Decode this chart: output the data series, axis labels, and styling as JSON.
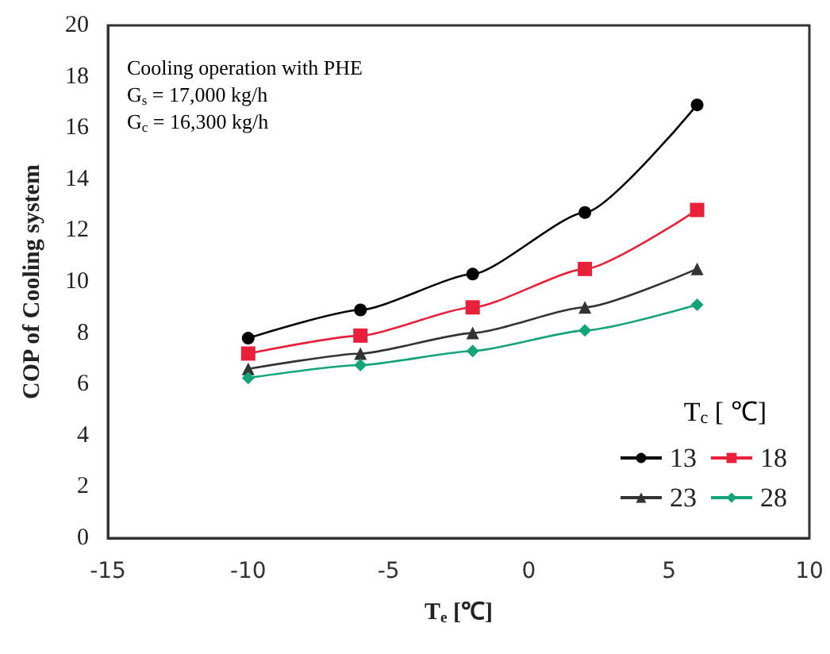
{
  "chart_data": {
    "type": "line",
    "xlabel": "T$_{e}$ [℃]",
    "ylabel": "COP of Cooling system",
    "legend_title": "T$_{c}$ [ ℃]",
    "annotations": [
      "Cooling operation with PHE",
      "G$_{s}$ = 17,000 kg/h",
      "G$_{c}$ = 16,300 kg/h"
    ],
    "x": [
      -10,
      -6,
      -2,
      2,
      6
    ],
    "series": [
      {
        "name": "13",
        "color": "#000000",
        "marker": "circle",
        "values": [
          7.8,
          8.9,
          10.3,
          12.7,
          16.9
        ]
      },
      {
        "name": "18",
        "color": "#e8203a",
        "marker": "square",
        "values": [
          7.2,
          7.9,
          9.0,
          10.5,
          12.8
        ]
      },
      {
        "name": "23",
        "color": "#333333",
        "marker": "triangle",
        "values": [
          6.6,
          7.2,
          8.0,
          9.0,
          10.5
        ]
      },
      {
        "name": "28",
        "color": "#14a37a",
        "marker": "diamond",
        "values": [
          6.25,
          6.75,
          7.3,
          8.1,
          9.1
        ]
      }
    ],
    "xlim": [
      -15,
      10
    ],
    "xticks": [
      -15,
      -10,
      -5,
      0,
      5,
      10
    ],
    "ylim": [
      0,
      20
    ],
    "yticks": [
      0,
      2,
      4,
      6,
      8,
      10,
      12,
      14,
      16,
      18,
      20
    ],
    "grid": false,
    "legend": "bottom right",
    "line_style": "solid"
  }
}
